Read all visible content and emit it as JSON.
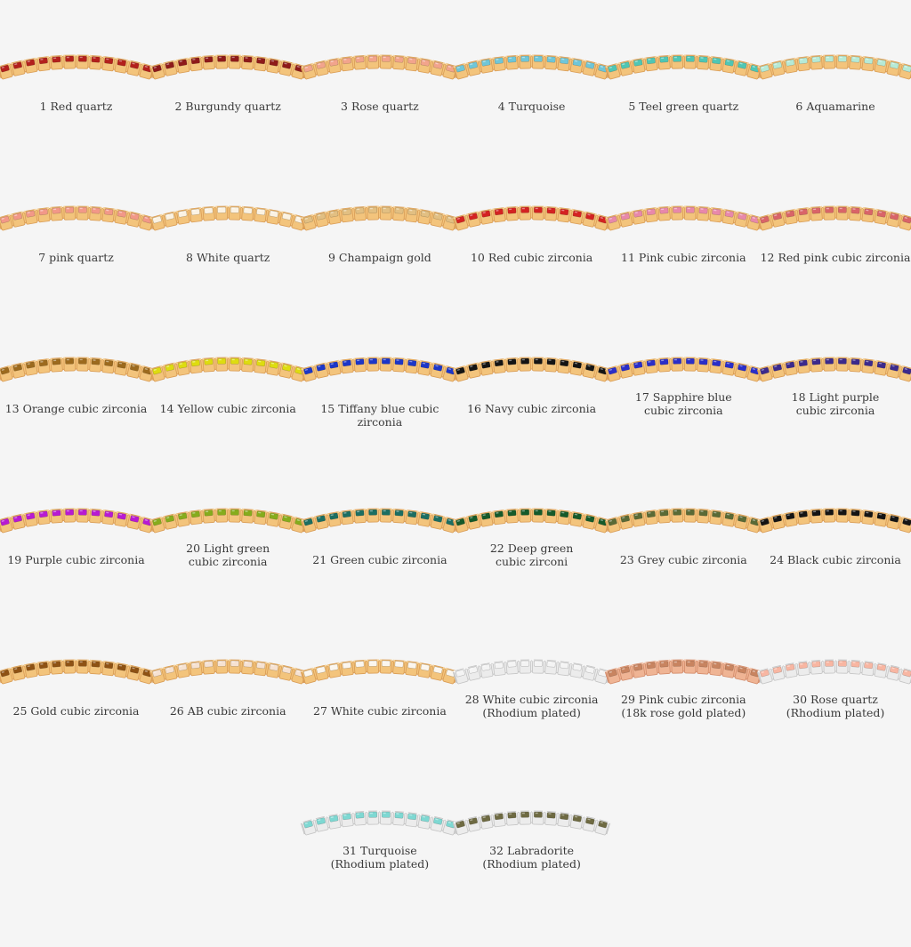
{
  "metals": {
    "gold": {
      "band": "#f3c47c",
      "edge": "#d99c55",
      "prong": "#f6d59e"
    },
    "silver": {
      "band": "#ececec",
      "edge": "#c4c4c4",
      "prong": "#f7f7f7"
    },
    "rose": {
      "band": "#efb494",
      "edge": "#d38b6a",
      "prong": "#f5cbb4"
    }
  },
  "items": [
    {
      "label": "1 Red quartz",
      "gem": "#b3201c",
      "metal": "gold"
    },
    {
      "label": "2 Burgundy quartz",
      "gem": "#8e1a1a",
      "metal": "gold"
    },
    {
      "label": "3 Rose quartz",
      "gem": "#f2a48c",
      "metal": "gold"
    },
    {
      "label": "4 Turquoise",
      "gem": "#6fc6d8",
      "metal": "gold"
    },
    {
      "label": "5 Teel green quartz",
      "gem": "#4fc6b4",
      "metal": "gold"
    },
    {
      "label": "6 Aquamarine",
      "gem": "#b6ead6",
      "metal": "gold"
    },
    {
      "label": "7 pink quartz",
      "gem": "#f29888",
      "metal": "gold"
    },
    {
      "label": "8 White quartz",
      "gem": "#fbf2e2",
      "metal": "gold"
    },
    {
      "label": "9 Champaign gold",
      "gem": "#e2bf82",
      "metal": "gold"
    },
    {
      "label": "10 Red cubic zirconia",
      "gem": "#d42222",
      "metal": "gold"
    },
    {
      "label": "11 Pink cubic zirconia",
      "gem": "#e888aa",
      "metal": "gold"
    },
    {
      "label": "12 Red pink cubic zirconia",
      "gem": "#d96468",
      "metal": "gold"
    },
    {
      "label": "13 Orange cubic zirconia",
      "gem": "#9c6a1e",
      "metal": "gold"
    },
    {
      "label": "14 Yellow cubic zirconia",
      "gem": "#dedc10",
      "metal": "gold"
    },
    {
      "label": "15 Tiffany blue cubic zirconia",
      "gem": "#1c36c8",
      "metal": "gold"
    },
    {
      "label": "16 Navy cubic zirconia",
      "gem": "#141414",
      "metal": "gold"
    },
    {
      "label": "17 Sapphire blue\ncubic zirconia",
      "gem": "#2a2ec8",
      "metal": "gold"
    },
    {
      "label": "18 Light purple\ncubic zirconia",
      "gem": "#3c2a8c",
      "metal": "gold"
    },
    {
      "label": "19 Purple cubic zirconia",
      "gem": "#b81ad2",
      "metal": "gold"
    },
    {
      "label": "20 Light green\ncubic zirconia",
      "gem": "#86ac1c",
      "metal": "gold"
    },
    {
      "label": "21 Green cubic zirconia",
      "gem": "#1c6e62",
      "metal": "gold"
    },
    {
      "label": "22 Deep green\ncubic zirconi",
      "gem": "#155a2a",
      "metal": "gold"
    },
    {
      "label": "23 Grey cubic zirconia",
      "gem": "#5a6a36",
      "metal": "gold"
    },
    {
      "label": "24 Black cubic zirconia",
      "gem": "#141414",
      "metal": "gold"
    },
    {
      "label": "25 Gold cubic zirconia",
      "gem": "#8e5214",
      "metal": "gold"
    },
    {
      "label": "26 AB cubic zirconia",
      "gem": "#f6e2d2",
      "metal": "gold"
    },
    {
      "label": "27 White cubic zirconia",
      "gem": "#fbf6ee",
      "metal": "gold"
    },
    {
      "label": "28 White cubic zirconia\n(Rhodium plated)",
      "gem": "#f4f4f4",
      "metal": "silver"
    },
    {
      "label": "29 Pink cubic zirconia\n(18k rose gold plated)",
      "gem": "#c88460",
      "metal": "rose"
    },
    {
      "label": "30 Rose quartz\n(Rhodium plated)",
      "gem": "#f8b6a2",
      "metal": "silver"
    },
    {
      "label": "31 Turquoise\n(Rhodium plated)",
      "gem": "#7ed8d2",
      "metal": "silver"
    },
    {
      "label": "32 Labradorite\n(Rhodium plated)",
      "gem": "#6e6a42",
      "metal": "silver"
    }
  ]
}
